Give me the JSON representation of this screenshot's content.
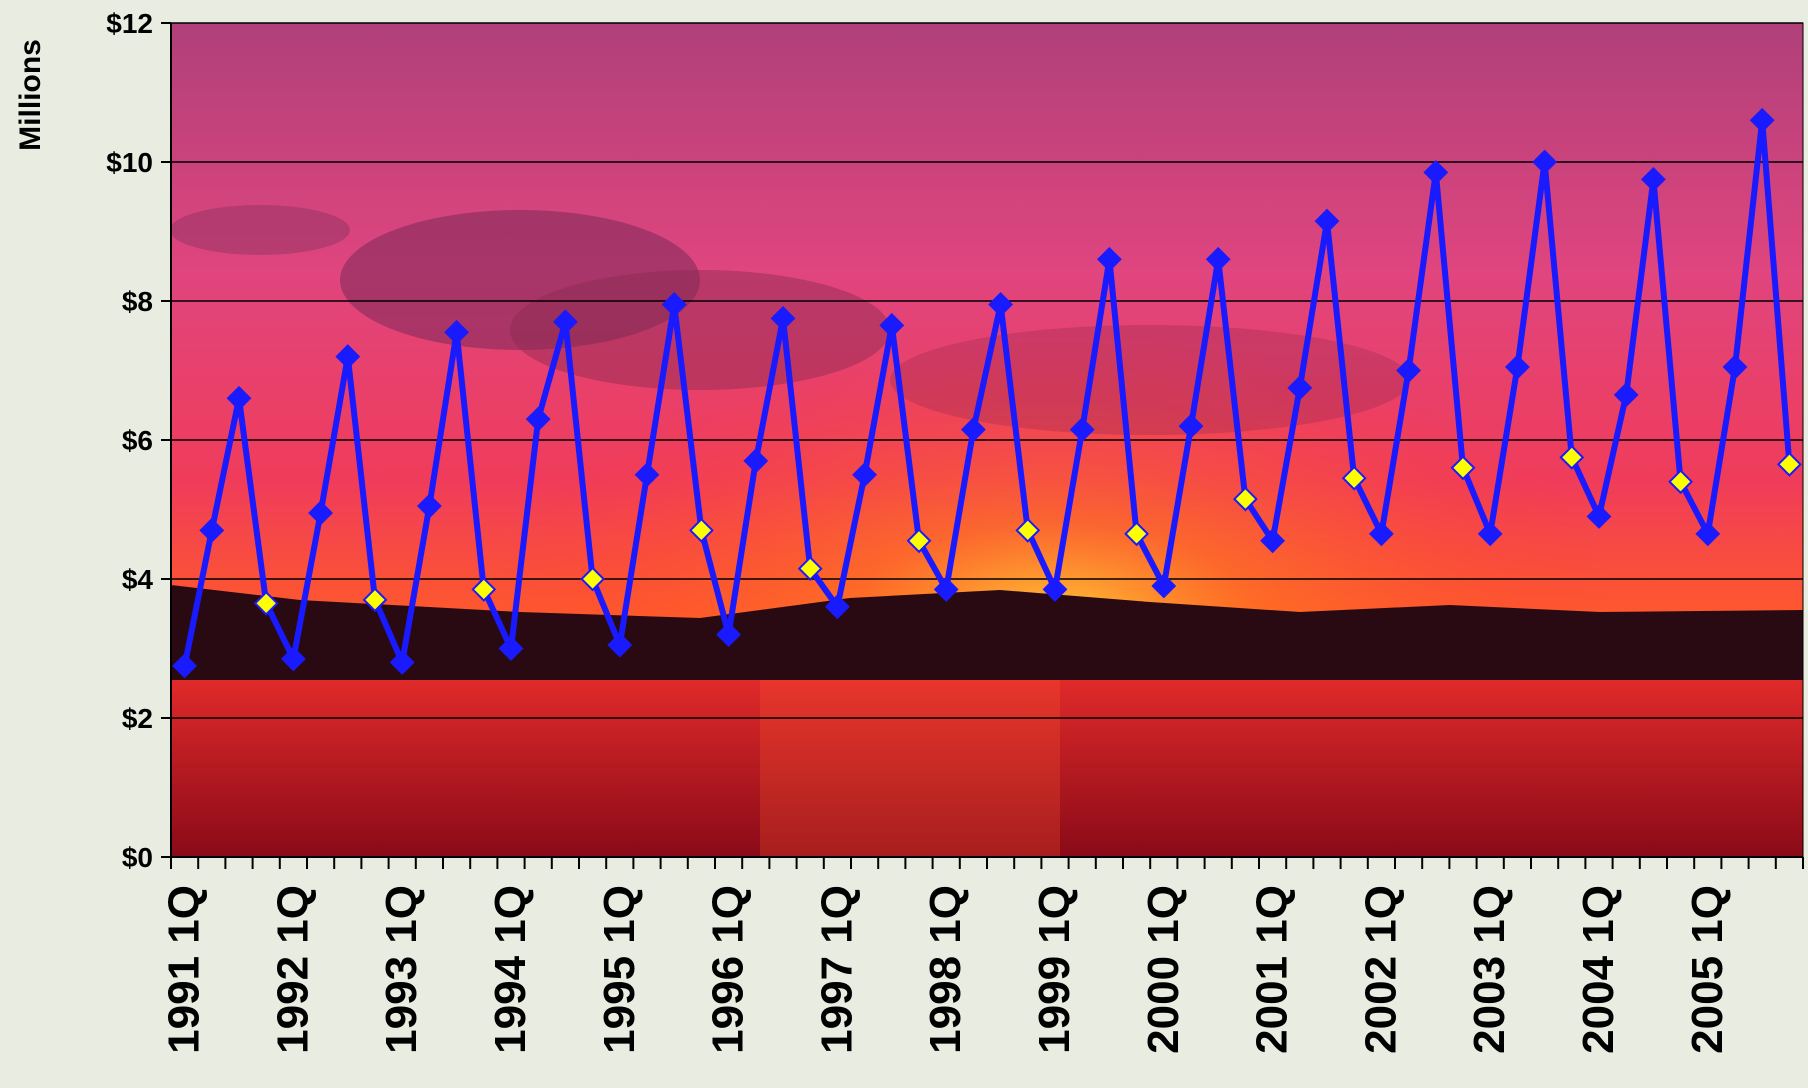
{
  "chart_data": {
    "type": "line",
    "ylabel": "Millions",
    "y_tick_labels": [
      "$0",
      "$2",
      "$4",
      "$6",
      "$8",
      "$10",
      "$12"
    ],
    "ylim": [
      0,
      12
    ],
    "y_ticks": [
      0,
      2,
      4,
      6,
      8,
      10,
      12
    ],
    "grid": true,
    "legend": "none",
    "x_tick_labels": [
      "1991 1Q",
      "1992 1Q",
      "1993 1Q",
      "1994 1Q",
      "1995 1Q",
      "1996 1Q",
      "1997 1Q",
      "1998 1Q",
      "1999 1Q",
      "2000 1Q",
      "2001 1Q",
      "2002 1Q",
      "2003 1Q",
      "2004 1Q",
      "2005 1Q"
    ],
    "x": [
      "1991 1Q",
      "1991 2Q",
      "1991 3Q",
      "1991 4Q",
      "1992 1Q",
      "1992 2Q",
      "1992 3Q",
      "1992 4Q",
      "1993 1Q",
      "1993 2Q",
      "1993 3Q",
      "1993 4Q",
      "1994 1Q",
      "1994 2Q",
      "1994 3Q",
      "1994 4Q",
      "1995 1Q",
      "1995 2Q",
      "1995 3Q",
      "1995 4Q",
      "1996 1Q",
      "1996 2Q",
      "1996 3Q",
      "1996 4Q",
      "1997 1Q",
      "1997 2Q",
      "1997 3Q",
      "1997 4Q",
      "1998 1Q",
      "1998 2Q",
      "1998 3Q",
      "1998 4Q",
      "1999 1Q",
      "1999 2Q",
      "1999 3Q",
      "1999 4Q",
      "2000 1Q",
      "2000 2Q",
      "2000 3Q",
      "2000 4Q",
      "2001 1Q",
      "2001 2Q",
      "2001 3Q",
      "2001 4Q",
      "2002 1Q",
      "2002 2Q",
      "2002 3Q",
      "2002 4Q",
      "2003 1Q",
      "2003 2Q",
      "2003 3Q",
      "2003 4Q",
      "2004 1Q",
      "2004 2Q",
      "2004 3Q",
      "2004 4Q",
      "2005 1Q",
      "2005 2Q",
      "2005 3Q",
      "2005 4Q"
    ],
    "series": [
      {
        "color": "#1a1aff",
        "highlight_marker_color": "#ffff00",
        "highlight_quarter": "4Q",
        "values": [
          2.75,
          4.7,
          6.6,
          3.65,
          2.85,
          4.95,
          7.2,
          3.7,
          2.8,
          5.05,
          7.55,
          3.85,
          3.0,
          6.3,
          7.7,
          4.0,
          3.05,
          5.5,
          7.95,
          4.7,
          3.2,
          5.7,
          7.75,
          4.15,
          3.6,
          5.5,
          7.65,
          4.55,
          3.85,
          6.15,
          7.95,
          4.7,
          3.85,
          6.15,
          8.6,
          4.65,
          3.9,
          6.2,
          8.6,
          5.15,
          4.55,
          6.75,
          9.15,
          5.45,
          4.65,
          7.0,
          9.85,
          5.6,
          4.65,
          7.05,
          10.0,
          5.75,
          4.9,
          6.65,
          9.75,
          5.4,
          4.65,
          7.05,
          10.6,
          5.65
        ]
      }
    ]
  }
}
